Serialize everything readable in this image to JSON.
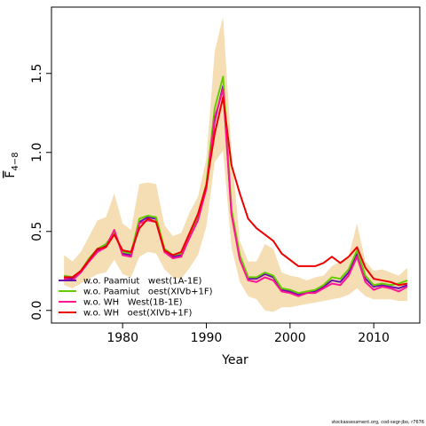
{
  "chart_data": {
    "type": "line",
    "title": "",
    "xlabel": "Year",
    "ylabel": "F̄4–8",
    "ylabel_main": "F",
    "ylabel_sub": "4−8",
    "xlim": [
      1971.5,
      2015.5
    ],
    "ylim": [
      -0.08,
      1.92
    ],
    "x_ticks": [
      1980,
      1990,
      2000,
      2010
    ],
    "y_ticks": [
      0.0,
      0.5,
      1.0,
      1.5
    ],
    "y_tick_labels": [
      "0.0",
      "0.5",
      "1.0",
      "1.5"
    ],
    "x_tick_labels": [
      "1980",
      "1990",
      "2000",
      "2010"
    ],
    "grid": false,
    "legend_position": "bottom-left",
    "x": [
      1973,
      1974,
      1975,
      1976,
      1977,
      1978,
      1979,
      1980,
      1981,
      1982,
      1983,
      1984,
      1985,
      1986,
      1987,
      1988,
      1989,
      1990,
      1991,
      1992,
      1993,
      1994,
      1995,
      1996,
      1997,
      1998,
      1999,
      2000,
      2001,
      2002,
      2003,
      2004,
      2005,
      2006,
      2007,
      2008,
      2009,
      2010,
      2011,
      2012,
      2013,
      2014
    ],
    "band": {
      "color": "#f5deb3",
      "lower": [
        0.16,
        0.14,
        0.17,
        0.2,
        0.23,
        0.24,
        0.32,
        0.23,
        0.21,
        0.34,
        0.37,
        0.36,
        0.26,
        0.21,
        0.2,
        0.27,
        0.35,
        0.53,
        0.94,
        1.01,
        0.4,
        0.18,
        0.09,
        0.07,
        0.0,
        -0.01,
        0.02,
        0.02,
        0.03,
        0.04,
        0.05,
        0.06,
        0.07,
        0.08,
        0.1,
        0.14,
        0.09,
        0.07,
        0.07,
        0.07,
        0.06,
        0.06
      ],
      "upper": [
        0.35,
        0.31,
        0.37,
        0.47,
        0.57,
        0.59,
        0.74,
        0.55,
        0.51,
        0.8,
        0.81,
        0.8,
        0.54,
        0.47,
        0.49,
        0.62,
        0.72,
        0.96,
        1.64,
        1.86,
        1.01,
        0.44,
        0.31,
        0.31,
        0.42,
        0.39,
        0.24,
        0.22,
        0.21,
        0.19,
        0.21,
        0.22,
        0.28,
        0.31,
        0.34,
        0.55,
        0.31,
        0.25,
        0.26,
        0.24,
        0.22,
        0.27
      ]
    },
    "series": [
      {
        "name": "w.o. Paamiut   west(1A-1E)",
        "color": "#6a0dad",
        "values": [
          0.21,
          0.2,
          0.24,
          0.32,
          0.38,
          0.41,
          0.5,
          0.36,
          0.35,
          0.56,
          0.59,
          0.58,
          0.38,
          0.34,
          0.35,
          0.47,
          0.58,
          0.78,
          1.2,
          1.42,
          0.62,
          0.33,
          0.2,
          0.2,
          0.23,
          0.21,
          0.13,
          0.12,
          0.1,
          0.11,
          0.12,
          0.15,
          0.19,
          0.18,
          0.24,
          0.36,
          0.2,
          0.15,
          0.16,
          0.15,
          0.14,
          0.16
        ]
      },
      {
        "name": "w.o. Paamiut   oest(XIVb+1F)",
        "color": "#66cc00",
        "values": [
          0.22,
          0.21,
          0.25,
          0.33,
          0.39,
          0.42,
          0.49,
          0.37,
          0.36,
          0.58,
          0.6,
          0.59,
          0.39,
          0.35,
          0.36,
          0.48,
          0.6,
          0.8,
          1.28,
          1.48,
          0.64,
          0.35,
          0.21,
          0.21,
          0.24,
          0.22,
          0.14,
          0.13,
          0.11,
          0.12,
          0.13,
          0.16,
          0.21,
          0.2,
          0.26,
          0.38,
          0.22,
          0.16,
          0.17,
          0.16,
          0.17,
          0.19
        ]
      },
      {
        "name": "w.o. WH   West(1B-1E)",
        "color": "#ff1493",
        "values": [
          0.2,
          0.19,
          0.24,
          0.31,
          0.37,
          0.4,
          0.51,
          0.35,
          0.34,
          0.55,
          0.57,
          0.56,
          0.37,
          0.33,
          0.34,
          0.46,
          0.57,
          0.77,
          1.22,
          1.4,
          0.61,
          0.32,
          0.19,
          0.18,
          0.21,
          0.19,
          0.12,
          0.11,
          0.09,
          0.11,
          0.11,
          0.14,
          0.17,
          0.16,
          0.22,
          0.34,
          0.18,
          0.13,
          0.15,
          0.14,
          0.12,
          0.15
        ]
      },
      {
        "name": "w.o. WH   oest(XIVb+1F)",
        "color": "#ee0000",
        "values": [
          0.21,
          0.21,
          0.25,
          0.32,
          0.39,
          0.4,
          0.48,
          0.38,
          0.37,
          0.52,
          0.58,
          0.56,
          0.38,
          0.35,
          0.37,
          0.49,
          0.61,
          0.79,
          1.12,
          1.35,
          0.92,
          0.74,
          0.58,
          0.52,
          0.48,
          0.44,
          0.36,
          0.32,
          0.28,
          0.28,
          0.28,
          0.3,
          0.34,
          0.3,
          0.34,
          0.4,
          0.27,
          0.2,
          0.19,
          0.18,
          0.16,
          0.17
        ]
      }
    ]
  },
  "footer": {
    "credit": "stockassessment.org, cod-segr-jbo, r7676"
  }
}
